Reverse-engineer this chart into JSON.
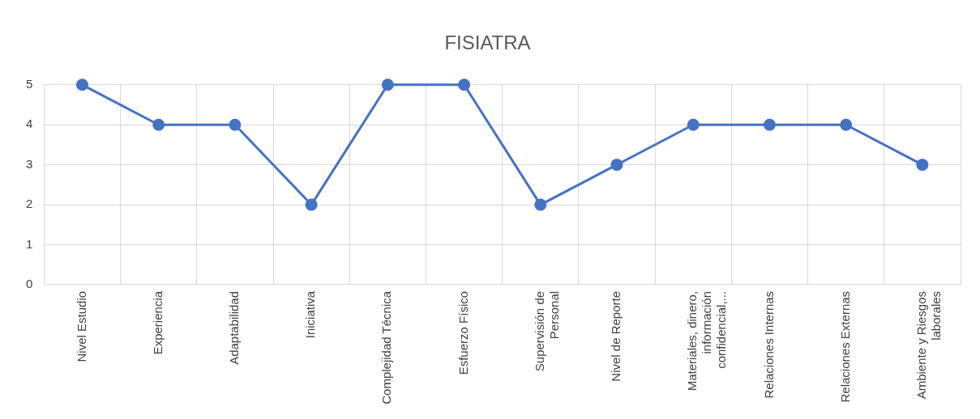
{
  "chart_data": {
    "type": "line",
    "title": "FISIATRA",
    "categories": [
      "Nivel Estudio",
      "Experiencia",
      "Adaptabilidad",
      "Iniciativa",
      "Complejidad Técnica",
      "Esfuerzo Físico",
      "Supervisión de Personal",
      "Nivel de Reporte",
      "Materiales, dinero, información confidencial,...",
      "Relaciones Internas",
      "Relaciones Externas",
      "Ambiente y Riesgos laborales"
    ],
    "series": [
      {
        "color": "#4472c4",
        "values": [
          5,
          4,
          4,
          2,
          5,
          5,
          2,
          3,
          4,
          4,
          4,
          3
        ]
      }
    ],
    "ylim": [
      0,
      5
    ],
    "yticks": [
      0,
      1,
      2,
      3,
      4,
      5
    ],
    "grid": true,
    "legend": false,
    "marker": "circle",
    "line_style": "solid"
  }
}
